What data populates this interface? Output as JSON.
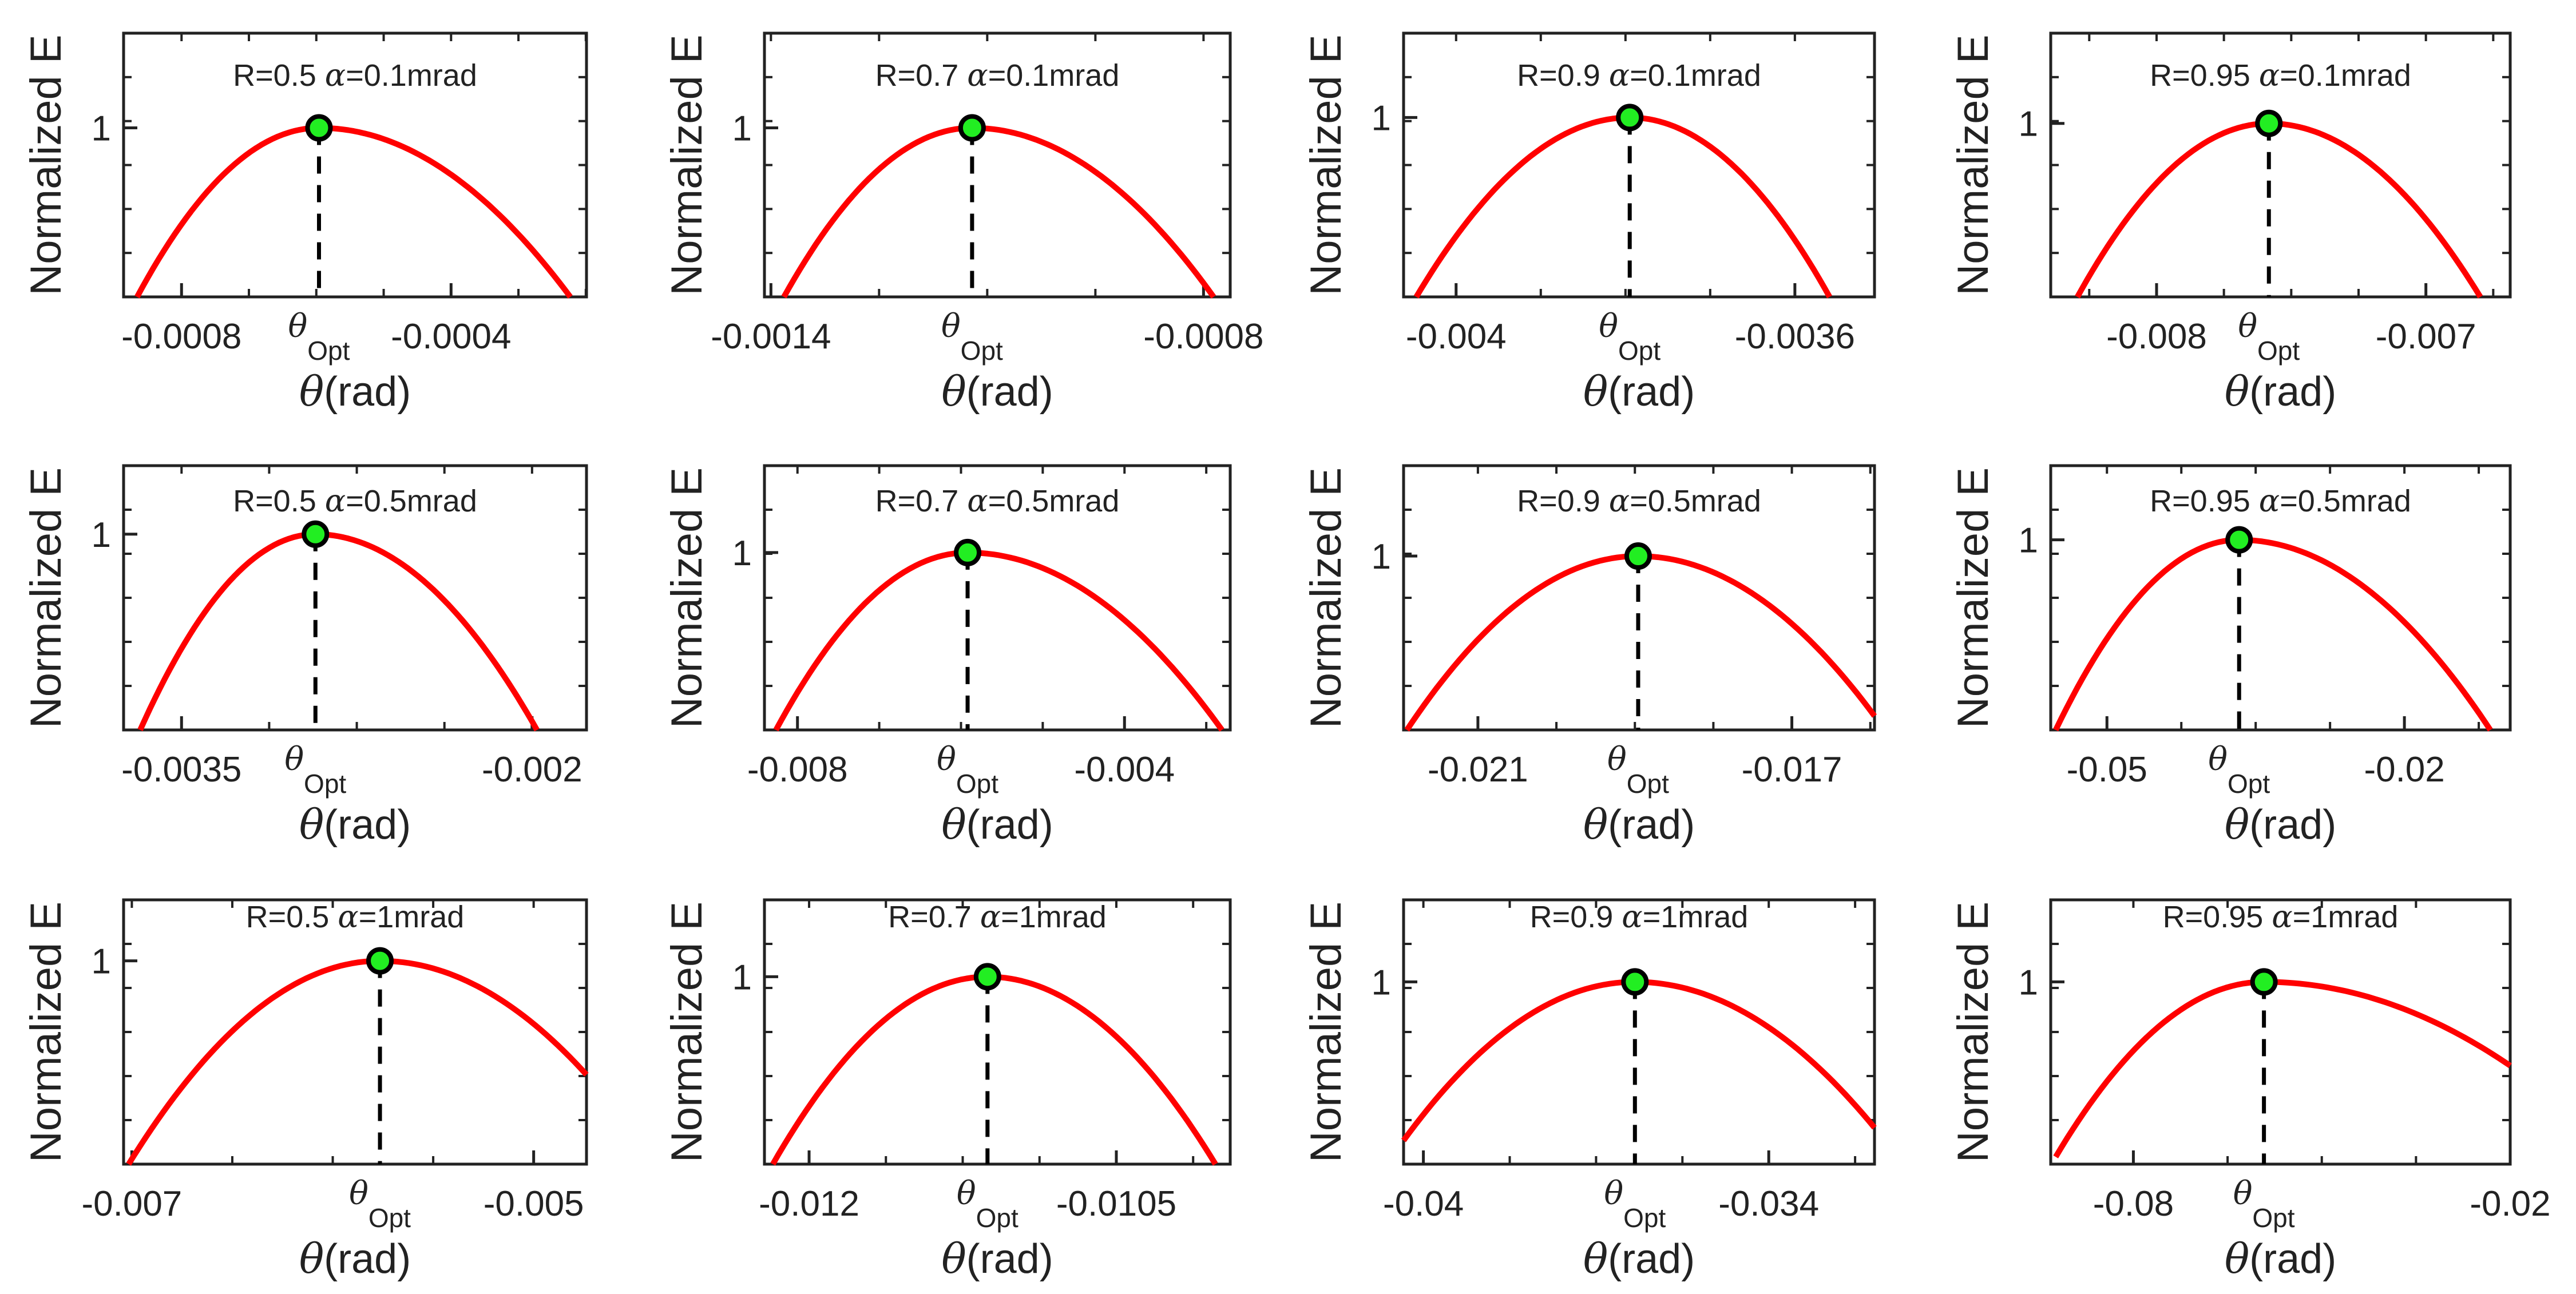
{
  "chart_data": {
    "type": "line",
    "layout": "3x4 grid",
    "colors": {
      "curve": "#ff0000",
      "marker_fill": "#22ee22",
      "marker_edge": "#000000",
      "guide": "#000000"
    },
    "common": {
      "ylabel": "Normalized E",
      "xlabel_symbol": "θ",
      "xlabel_unit": "(rad)",
      "opt_symbol": "θ",
      "opt_sub": "Opt",
      "ytick_label": "1"
    },
    "panels": [
      {
        "title_r": "R=0.5 ",
        "title_a": "α",
        "title_rest": "=0.1mrad",
        "xlim": [
          -0.000886,
          -0.000199
        ],
        "ylim": [
          0,
          1.56
        ],
        "xticks": [
          -0.0008,
          -0.0004
        ],
        "xtick_labels": [
          "-0.0008",
          "-0.0004"
        ],
        "theta_opt": -0.000596,
        "curve_x": [
          -0.000866,
          -0.000596,
          -0.000223
        ],
        "curve_y": [
          0,
          1,
          0
        ]
      },
      {
        "title_r": "R=0.7 ",
        "title_a": "α",
        "title_rest": "=0.1mrad",
        "xlim": [
          -0.001409,
          -0.000763
        ],
        "ylim": [
          0,
          1.56
        ],
        "xticks": [
          -0.0014,
          -0.0008
        ],
        "xtick_labels": [
          "-0.0014",
          "-0.0008"
        ],
        "theta_opt": -0.001121,
        "curve_x": [
          -0.001382,
          -0.001121,
          -0.000786
        ],
        "curve_y": [
          0,
          1,
          0
        ]
      },
      {
        "title_r": "R=0.9 ",
        "title_a": "α",
        "title_rest": "=0.1mrad",
        "xlim": [
          -0.004062,
          -0.003506
        ],
        "ylim": [
          0,
          1.47
        ],
        "xticks": [
          -0.004,
          -0.0036
        ],
        "xtick_labels": [
          "-0.004",
          "-0.0036"
        ],
        "theta_opt": -0.003795,
        "curve_x": [
          -0.004047,
          -0.003795,
          -0.003559
        ],
        "curve_y": [
          0,
          1,
          0
        ]
      },
      {
        "title_r": "R=0.95 ",
        "title_a": "α",
        "title_rest": "=0.1mrad",
        "xlim": [
          -0.008393,
          -0.006687
        ],
        "ylim": [
          0,
          1.52
        ],
        "xticks": [
          -0.008,
          -0.007
        ],
        "xtick_labels": [
          "-0.008",
          "-0.007"
        ],
        "theta_opt": -0.007583,
        "curve_x": [
          -0.008294,
          -0.007583,
          -0.006798
        ],
        "curve_y": [
          0,
          1,
          0
        ]
      },
      {
        "title_r": "R=0.5 ",
        "title_a": "α",
        "title_rest": "=0.5mrad",
        "xlim": [
          -0.003748,
          -0.001767
        ],
        "ylim": [
          0,
          1.35
        ],
        "xticks": [
          -0.0035,
          -0.002
        ],
        "xtick_labels": [
          "-0.0035",
          "-0.002"
        ],
        "theta_opt": -0.002927,
        "curve_x": [
          -0.003677,
          -0.002927,
          -0.001979
        ],
        "curve_y": [
          0,
          1,
          0
        ]
      },
      {
        "title_r": "R=0.7 ",
        "title_a": "α",
        "title_rest": "=0.5mrad",
        "xlim": [
          -0.008404,
          -0.002707
        ],
        "ylim": [
          0,
          1.49
        ],
        "xticks": [
          -0.008,
          -0.004
        ],
        "xtick_labels": [
          "-0.008",
          "-0.004"
        ],
        "theta_opt": -0.005919,
        "curve_x": [
          -0.008263,
          -0.005919,
          -0.002808
        ],
        "curve_y": [
          0,
          1,
          0
        ]
      },
      {
        "title_r": "R=0.9 ",
        "title_a": "α",
        "title_rest": "=0.5mrad",
        "xlim": [
          -0.021947,
          -0.015947
        ],
        "ylim": [
          0,
          1.52
        ],
        "xticks": [
          -0.021,
          -0.017
        ],
        "xtick_labels": [
          "-0.021",
          "-0.017"
        ],
        "theta_opt": -0.018958,
        "curve_x": [
          -0.021905,
          -0.018958,
          -0.015947
        ],
        "curve_y": [
          0,
          1,
          0.08
        ]
      },
      {
        "title_r": "R=0.95 ",
        "title_a": "α",
        "title_rest": "=0.5mrad",
        "xlim": [
          -0.05567,
          -0.00933
        ],
        "ylim": [
          0,
          1.39
        ],
        "xticks": [
          -0.05,
          -0.02
        ],
        "xtick_labels": [
          "-0.05",
          "-0.02"
        ],
        "theta_opt": -0.03667,
        "curve_x": [
          -0.05517,
          -0.03667,
          -0.01133
        ],
        "curve_y": [
          0,
          1,
          0
        ]
      },
      {
        "title_r": "R=0.5 ",
        "title_a": "α",
        "title_rest": "=1mrad",
        "xlim": [
          -0.007041,
          -0.004737
        ],
        "ylim": [
          0,
          1.3
        ],
        "xticks": [
          -0.007,
          -0.005
        ],
        "xtick_labels": [
          "-0.007",
          "-0.005"
        ],
        "theta_opt": -0.005765,
        "curve_x": [
          -0.007016,
          -0.005765,
          -0.004737
        ],
        "curve_y": [
          0,
          1,
          0.44
        ]
      },
      {
        "title_r": "R=0.7 ",
        "title_a": "α",
        "title_rest": "=1mrad",
        "xlim": [
          -0.012218,
          -0.009944
        ],
        "ylim": [
          0,
          1.41
        ],
        "xticks": [
          -0.012,
          -0.0105
        ],
        "xtick_labels": [
          "-0.012",
          "-0.0105"
        ],
        "theta_opt": -0.011129,
        "curve_x": [
          -0.012177,
          -0.011129,
          -0.010016
        ],
        "curve_y": [
          0,
          1,
          0
        ]
      },
      {
        "title_r": "R=0.9 ",
        "title_a": "α",
        "title_rest": "=1mrad",
        "xlim": [
          -0.040344,
          -0.032163
        ],
        "ylim": [
          0,
          1.45
        ],
        "xticks": [
          -0.04,
          -0.034
        ],
        "xtick_labels": [
          "-0.04",
          "-0.034"
        ],
        "theta_opt": -0.036325,
        "curve_x": [
          -0.040344,
          -0.036325,
          -0.032163
        ],
        "curve_y": [
          0.13,
          1,
          0.2
        ]
      },
      {
        "title_r": "R=0.95 ",
        "title_a": "α",
        "title_rest": "=1mrad",
        "xlim": [
          -0.09316,
          -0.02
        ],
        "ylim": [
          0,
          1.45
        ],
        "xticks": [
          -0.08,
          -0.02
        ],
        "xtick_labels": [
          "-0.08",
          "-0.02"
        ],
        "theta_opt": -0.05921,
        "curve_x": [
          -0.09237,
          -0.05921,
          -0.02
        ],
        "curve_y": [
          0.04,
          1,
          0.54
        ]
      }
    ]
  }
}
